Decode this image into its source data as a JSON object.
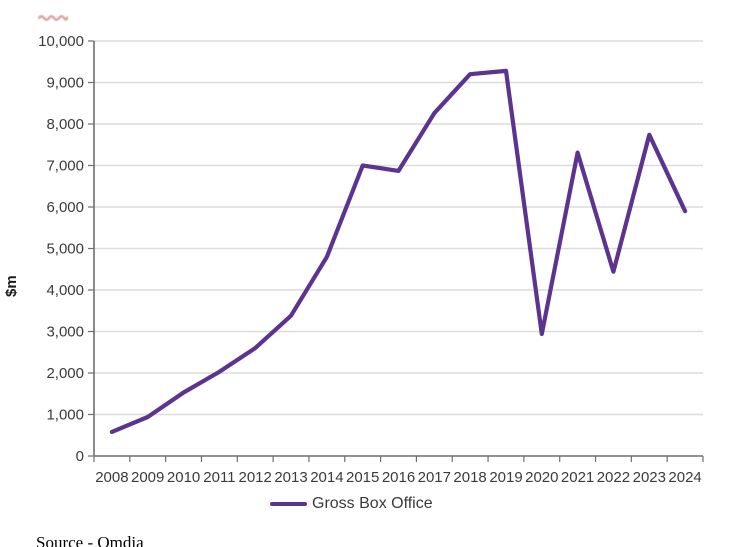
{
  "colors": {
    "line_purple": "#5c338f",
    "gridline": "#dcdcdc",
    "axis": "#6e6e6e",
    "tick_text": "#3b3b3b",
    "spellcheck_red": "#c00000",
    "artifact_red": "#b3332e"
  },
  "chart_data": {
    "type": "line",
    "title": "",
    "xlabel": "",
    "ylabel": "$m",
    "grid": "horizontal",
    "legend_position": "bottom",
    "ylim": [
      0,
      10000
    ],
    "ytick_step": 1000,
    "yticks": [
      {
        "value": 0,
        "label": "0"
      },
      {
        "value": 1000,
        "label": "1,000"
      },
      {
        "value": 2000,
        "label": "2,000"
      },
      {
        "value": 3000,
        "label": "3,000"
      },
      {
        "value": 4000,
        "label": "4,000"
      },
      {
        "value": 5000,
        "label": "5,000"
      },
      {
        "value": 6000,
        "label": "6,000"
      },
      {
        "value": 7000,
        "label": "7,000"
      },
      {
        "value": 8000,
        "label": "8,000"
      },
      {
        "value": 9000,
        "label": "9,000"
      },
      {
        "value": 10000,
        "label": "10,000"
      }
    ],
    "categories": [
      "2008",
      "2009",
      "2010",
      "2011",
      "2012",
      "2013",
      "2014",
      "2015",
      "2016",
      "2017",
      "2018",
      "2019",
      "2020",
      "2021",
      "2022",
      "2023",
      "2024"
    ],
    "series": [
      {
        "name": "Gross Box Office",
        "color": "#5c338f",
        "values": [
          580,
          940,
          1530,
          2030,
          2600,
          3380,
          4800,
          7000,
          6870,
          8260,
          9200,
          9280,
          2940,
          7310,
          4440,
          7740,
          5900
        ]
      }
    ]
  },
  "source": {
    "prefix": "Source - ",
    "name": "Omdia"
  }
}
